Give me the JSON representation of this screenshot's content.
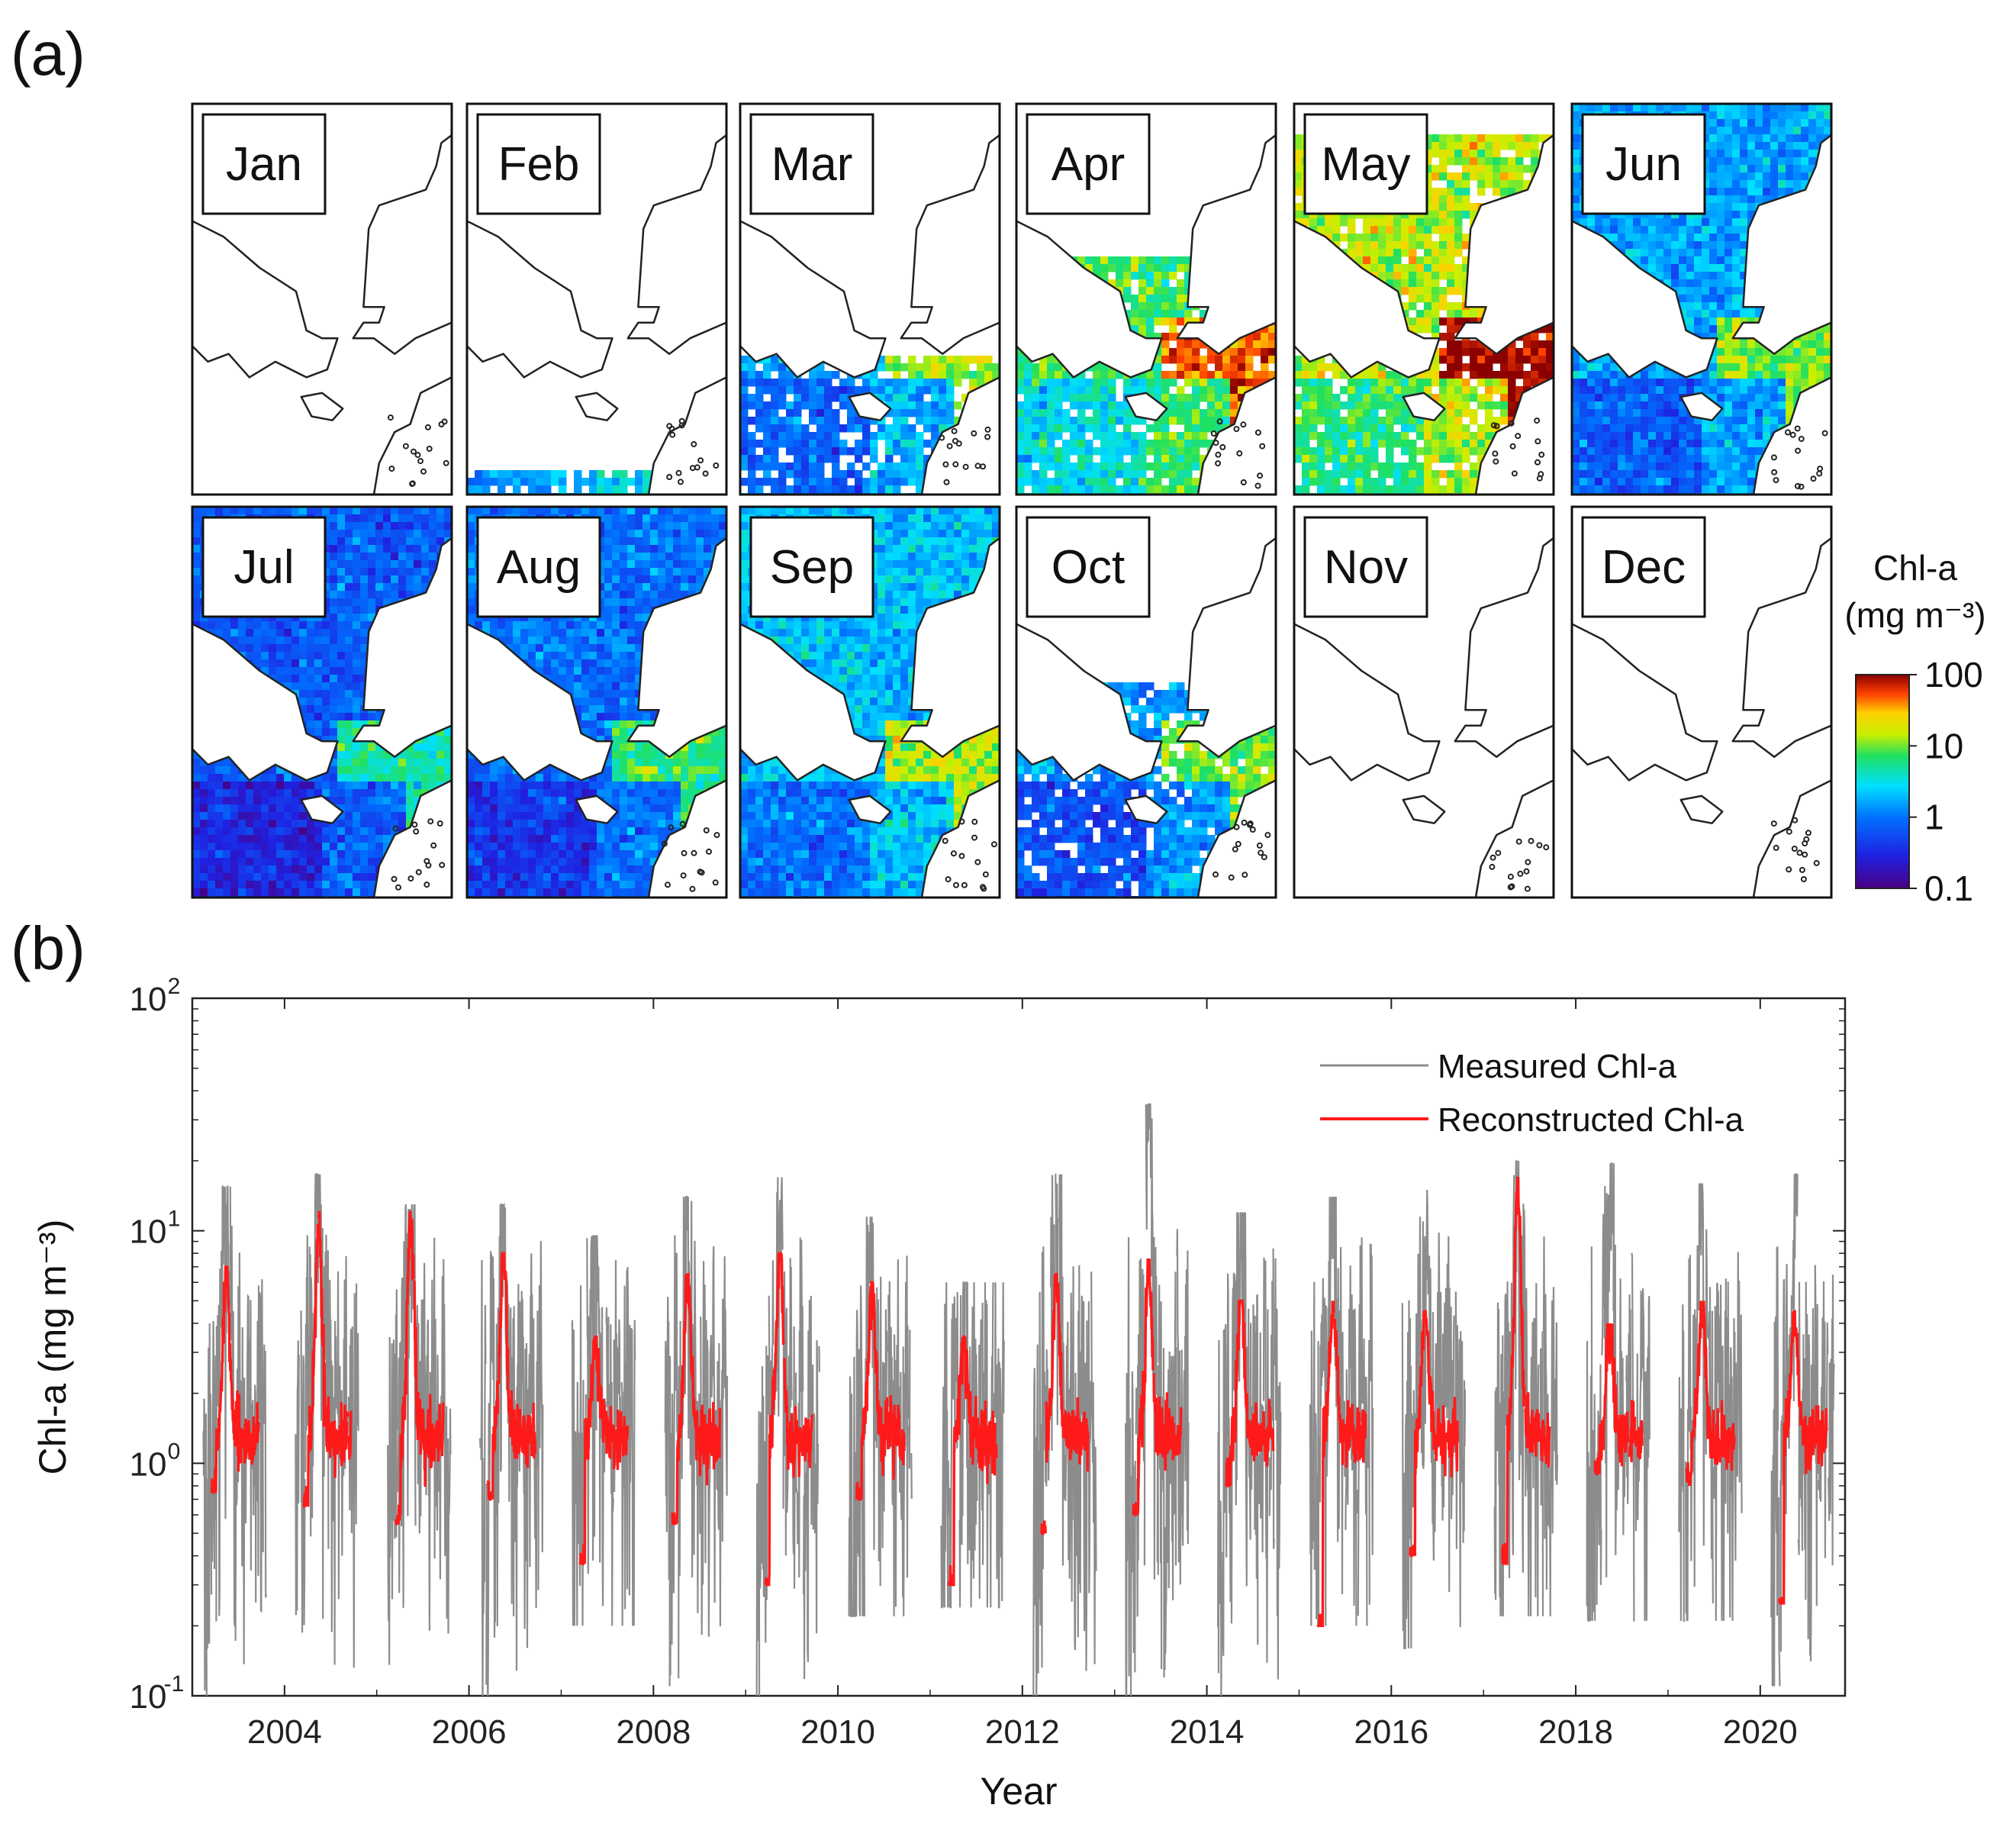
{
  "panel_a_label": "(a)",
  "panel_b_label": "(b)",
  "colors": {
    "measured": "#8c8c8c",
    "reconstructed": "#ff1a1a",
    "land": "#ffffff",
    "coast": "#222222"
  },
  "maps": [
    {
      "month": "Jan",
      "coverage": 0.0,
      "level": 0.0
    },
    {
      "month": "Feb",
      "coverage": 0.06,
      "level": 0.5
    },
    {
      "month": "Mar",
      "coverage": 0.35,
      "level": 0.42
    },
    {
      "month": "Apr",
      "coverage": 0.6,
      "level": 0.62
    },
    {
      "month": "May",
      "coverage": 0.92,
      "level": 0.72
    },
    {
      "month": "Jun",
      "coverage": 1.0,
      "level": 0.4
    },
    {
      "month": "Jul",
      "coverage": 1.0,
      "level": 0.28
    },
    {
      "month": "Aug",
      "coverage": 1.0,
      "level": 0.32
    },
    {
      "month": "Sep",
      "coverage": 1.0,
      "level": 0.44
    },
    {
      "month": "Oct",
      "coverage": 0.55,
      "level": 0.38
    },
    {
      "month": "Nov",
      "coverage": 0.0,
      "level": 0.0
    },
    {
      "month": "Dec",
      "coverage": 0.0,
      "level": 0.0
    }
  ],
  "colorbar": {
    "title_line1": "Chl-a",
    "title_line2": "(mg m⁻³)",
    "ticks": [
      "100",
      "10",
      "1",
      "0.1"
    ],
    "range": [
      0.1,
      100
    ],
    "scale": "log"
  },
  "chart_data": {
    "type": "line",
    "title": "",
    "xlabel": "Year",
    "ylabel": "Chl-a (mg m⁻³)",
    "xlim": [
      2003.0,
      2020.92
    ],
    "ylim": [
      0.1,
      100
    ],
    "yscale": "log",
    "xticks": [
      2004,
      2006,
      2008,
      2010,
      2012,
      2014,
      2016,
      2018,
      2020
    ],
    "xtick_labels": [
      "2004",
      "2006",
      "2008",
      "2010",
      "2012",
      "2014",
      "2016",
      "2018",
      "2020"
    ],
    "yticks": [
      0.1,
      1,
      10,
      100
    ],
    "ytick_labels": [
      {
        "base": "10",
        "exp": "-1"
      },
      {
        "base": "10",
        "exp": "0"
      },
      {
        "base": "10",
        "exp": "1"
      },
      {
        "base": "10",
        "exp": "2"
      }
    ],
    "legend_position": "top-right",
    "series": [
      {
        "name": "Measured Chl-a",
        "color": "#8c8c8c",
        "note": "daily satellite values; each year: peak in spring, range about 0.1-17, typical 1-6",
        "annual_peaks": [
          {
            "year": 2003,
            "peak": 15.5,
            "min": 0.09
          },
          {
            "year": 2004,
            "peak": 17.5,
            "min": 0.13
          },
          {
            "year": 2005,
            "peak": 13.0,
            "min": 0.105
          },
          {
            "year": 2006,
            "peak": 13.0,
            "min": 0.08
          },
          {
            "year": 2007,
            "peak": 9.5,
            "min": 0.2
          },
          {
            "year": 2008,
            "peak": 14.0,
            "min": 0.11
          },
          {
            "year": 2009,
            "peak": 17.0,
            "min": 0.09
          },
          {
            "year": 2010,
            "peak": 11.5,
            "min": 0.22
          },
          {
            "year": 2011,
            "peak": 6.0,
            "min": 0.24
          },
          {
            "year": 2012,
            "peak": 17.5,
            "min": 0.095
          },
          {
            "year": 2013,
            "peak": 35.0,
            "min": 0.1
          },
          {
            "year": 2014,
            "peak": 12.0,
            "min": 0.1
          },
          {
            "year": 2015,
            "peak": 14.0,
            "min": 0.2
          },
          {
            "year": 2016,
            "peak": 15.0,
            "min": 0.16
          },
          {
            "year": 2017,
            "peak": 20.0,
            "min": 0.22
          },
          {
            "year": 2018,
            "peak": 19.5,
            "min": 0.21
          },
          {
            "year": 2019,
            "peak": 16.0,
            "min": 0.21
          },
          {
            "year": 2020,
            "peak": 17.5,
            "min": 0.11
          }
        ]
      },
      {
        "name": "Reconstructed Chl-a",
        "color": "#ff1a1a",
        "note": "smoothed series; spring peak then summer plateau about 1-2",
        "annual_peaks": [
          {
            "year": 2003,
            "peak": 7.0,
            "min": 0.75
          },
          {
            "year": 2004,
            "peak": 12.0,
            "min": 0.65
          },
          {
            "year": 2005,
            "peak": 12.0,
            "min": 0.55
          },
          {
            "year": 2006,
            "peak": 8.0,
            "min": 0.7
          },
          {
            "year": 2007,
            "peak": 3.5,
            "min": 0.37
          },
          {
            "year": 2008,
            "peak": 6.5,
            "min": 0.55
          },
          {
            "year": 2009,
            "peak": 8.0,
            "min": 0.3
          },
          {
            "year": 2010,
            "peak": 6.0,
            "min": 0.7
          },
          {
            "year": 2011,
            "peak": 3.5,
            "min": 0.3
          },
          {
            "year": 2012,
            "peak": 6.5,
            "min": 0.5
          },
          {
            "year": 2013,
            "peak": 7.5,
            "min": 0.6
          },
          {
            "year": 2014,
            "peak": 5.0,
            "min": 0.8
          },
          {
            "year": 2015,
            "peak": 5.0,
            "min": 0.2
          },
          {
            "year": 2016,
            "peak": 4.5,
            "min": 0.4
          },
          {
            "year": 2017,
            "peak": 18.0,
            "min": 0.37
          },
          {
            "year": 2018,
            "peak": 4.0,
            "min": 0.9
          },
          {
            "year": 2019,
            "peak": 5.0,
            "min": 0.8
          },
          {
            "year": 2020,
            "peak": 4.5,
            "min": 0.25
          }
        ]
      }
    ]
  }
}
